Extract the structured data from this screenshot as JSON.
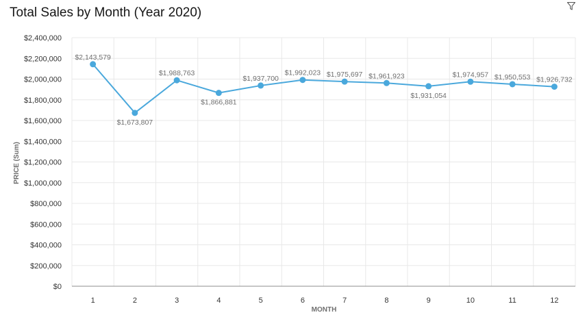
{
  "chart_data": {
    "type": "line",
    "title": "Total Sales by Month (Year 2020)",
    "xlabel": "MONTH",
    "ylabel": "PRICE (Sum)",
    "categories": [
      "1",
      "2",
      "3",
      "4",
      "5",
      "6",
      "7",
      "8",
      "9",
      "10",
      "11",
      "12"
    ],
    "series": [
      {
        "values": [
          2143579,
          1673807,
          1988763,
          1866881,
          1937700,
          1992023,
          1975697,
          1961923,
          1931054,
          1974957,
          1950553,
          1926732
        ],
        "labels": [
          "$2,143,579",
          "$1,673,807",
          "$1,988,763",
          "$1,866,881",
          "$1,937,700",
          "$1,992,023",
          "$1,975,697",
          "$1,961,923",
          "$1,931,054",
          "$1,974,957",
          "$1,950,553",
          "$1,926,732"
        ],
        "label_position": [
          "above",
          "below",
          "above",
          "below",
          "above",
          "above",
          "above",
          "above",
          "below",
          "above",
          "above",
          "above"
        ],
        "color": "#4aa8dc"
      }
    ],
    "ylim": [
      0,
      2400000
    ],
    "yticks": [
      0,
      200000,
      400000,
      600000,
      800000,
      1000000,
      1200000,
      1400000,
      1600000,
      1800000,
      2000000,
      2200000,
      2400000
    ],
    "ytick_labels": [
      "$0",
      "$200,000",
      "$400,000",
      "$600,000",
      "$800,000",
      "$1,000,000",
      "$1,200,000",
      "$1,400,000",
      "$1,600,000",
      "$1,800,000",
      "$2,000,000",
      "$2,200,000",
      "$2,400,000"
    ],
    "grid": true,
    "legend": "none"
  },
  "icons": {
    "filter": "filter-icon"
  },
  "colors": {
    "line": "#4aa8dc",
    "grid": "#e8e8e8",
    "axis": "#8d8d8d"
  }
}
